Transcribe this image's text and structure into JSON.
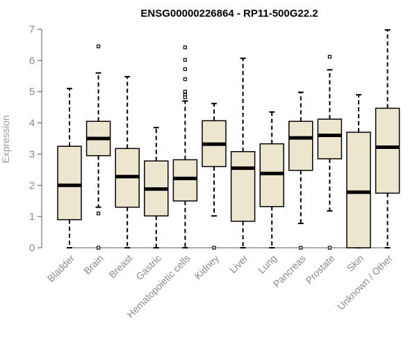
{
  "chart_data": {
    "type": "boxplot",
    "title": "ENSG00000226864 - RP11-500G22.2",
    "xlabel": "",
    "ylabel": "Expression",
    "ylim": [
      0,
      7
    ],
    "yticks": [
      0,
      1,
      2,
      3,
      4,
      5,
      6,
      7
    ],
    "box_color": "#ede6cf",
    "categories": [
      "Bladder",
      "Brain",
      "Breast",
      "Gastric",
      "Hematopoietic cells",
      "Kidney",
      "Liver",
      "Lung",
      "Pancreas",
      "Prostate",
      "Skin",
      "Unknown / Other"
    ],
    "series": [
      {
        "name": "Bladder",
        "min": 0,
        "q1": 0.9,
        "median": 2.0,
        "q3": 3.25,
        "max": 5.1,
        "outliers": []
      },
      {
        "name": "Brain",
        "min": 1.3,
        "q1": 2.95,
        "median": 3.5,
        "q3": 4.05,
        "max": 5.6,
        "outliers": [
          6.45,
          1.1,
          0.0
        ]
      },
      {
        "name": "Breast",
        "min": 0,
        "q1": 1.3,
        "median": 2.28,
        "q3": 3.18,
        "max": 5.48,
        "outliers": []
      },
      {
        "name": "Gastric",
        "min": 0,
        "q1": 1.02,
        "median": 1.88,
        "q3": 2.78,
        "max": 3.85,
        "outliers": []
      },
      {
        "name": "Hematopoietic cells",
        "min": 0,
        "q1": 1.5,
        "median": 2.22,
        "q3": 2.82,
        "max": 4.7,
        "outliers": [
          6.42,
          6.02,
          5.72,
          5.4,
          5.0,
          4.9,
          4.82
        ]
      },
      {
        "name": "Kidney",
        "min": 1.02,
        "q1": 2.6,
        "median": 3.32,
        "q3": 4.07,
        "max": 4.62,
        "outliers": [
          0.0
        ]
      },
      {
        "name": "Liver",
        "min": 0,
        "q1": 0.85,
        "median": 2.55,
        "q3": 3.08,
        "max": 6.07,
        "outliers": []
      },
      {
        "name": "Lung",
        "min": 0,
        "q1": 1.32,
        "median": 2.38,
        "q3": 3.33,
        "max": 4.35,
        "outliers": []
      },
      {
        "name": "Pancreas",
        "min": 0.78,
        "q1": 2.48,
        "median": 3.52,
        "q3": 4.05,
        "max": 4.98,
        "outliers": [
          0.0
        ]
      },
      {
        "name": "Prostate",
        "min": 1.18,
        "q1": 2.85,
        "median": 3.6,
        "q3": 4.12,
        "max": 5.7,
        "outliers": [
          6.12,
          0.0
        ]
      },
      {
        "name": "Skin",
        "min": 0,
        "q1": 0,
        "median": 1.78,
        "q3": 3.7,
        "max": 4.9,
        "outliers": []
      },
      {
        "name": "Unknown / Other",
        "min": 0,
        "q1": 1.75,
        "median": 3.22,
        "q3": 4.47,
        "max": 6.98,
        "outliers": []
      }
    ]
  }
}
